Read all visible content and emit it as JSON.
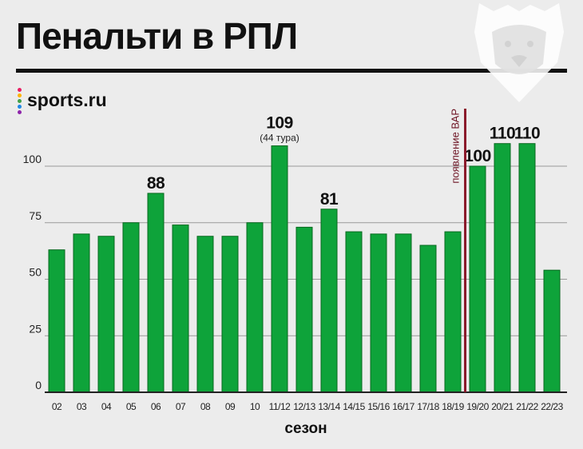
{
  "header": {
    "title": "Пенальти в РПЛ",
    "brand": "sports.ru",
    "brand_dot_colors": [
      "#e91e63",
      "#ffb300",
      "#43a047",
      "#1e88e5",
      "#8e24aa"
    ]
  },
  "colors": {
    "bar": "#0ea33a",
    "bar_outline": "#08691f",
    "var_line": "#8b1a2b",
    "grid": "#9a9a9a",
    "axis": "#222222"
  },
  "chart_data": {
    "type": "bar",
    "title": "Пенальти в РПЛ",
    "xlabel": "сезон",
    "ylabel": "",
    "ylim": [
      0,
      110
    ],
    "yticks": [
      0,
      25,
      50,
      75,
      100
    ],
    "grid": true,
    "categories": [
      "02",
      "03",
      "04",
      "05",
      "06",
      "07",
      "08",
      "09",
      "10",
      "11/12",
      "12/13",
      "13/14",
      "14/15",
      "15/16",
      "16/17",
      "17/18",
      "18/19",
      "19/20",
      "20/21",
      "21/22",
      "22/23"
    ],
    "values": [
      63,
      70,
      69,
      75,
      88,
      74,
      69,
      69,
      75,
      109,
      73,
      81,
      71,
      70,
      70,
      65,
      71,
      100,
      110,
      110,
      54
    ],
    "data_labels": [
      {
        "category": "06",
        "text": "88"
      },
      {
        "category": "11/12",
        "text": "109",
        "note": "(44 тура)"
      },
      {
        "category": "13/14",
        "text": "81"
      },
      {
        "category": "19/20",
        "text": "100"
      },
      {
        "category": "20/21",
        "text": "110"
      },
      {
        "category": "21/22",
        "text": "110"
      }
    ],
    "annotations": [
      {
        "text": "появление ВАР",
        "between": [
          "18/19",
          "19/20"
        ]
      }
    ]
  }
}
